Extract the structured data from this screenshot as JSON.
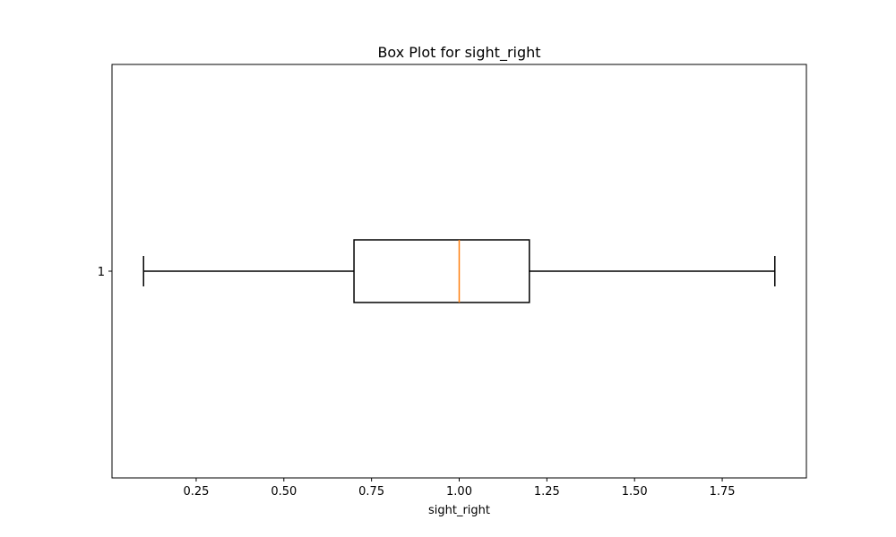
{
  "chart_data": {
    "type": "box",
    "title": "Box Plot for sight_right",
    "xlabel": "sight_right",
    "ylabel": "",
    "orientation": "horizontal",
    "xlim": [
      0.01,
      1.99
    ],
    "xticks": [
      0.25,
      0.5,
      0.75,
      1.0,
      1.25,
      1.5,
      1.75
    ],
    "xtick_labels": [
      "0.25",
      "0.50",
      "0.75",
      "1.00",
      "1.25",
      "1.50",
      "1.75"
    ],
    "ytick_labels": [
      "1"
    ],
    "grid": false,
    "boxes": [
      {
        "label": "1",
        "whisker_low": 0.1,
        "q1": 0.7,
        "median": 1.0,
        "q3": 1.2,
        "whisker_high": 1.9
      }
    ],
    "colors": {
      "box": "#000000",
      "median": "#ff7f0e"
    }
  }
}
